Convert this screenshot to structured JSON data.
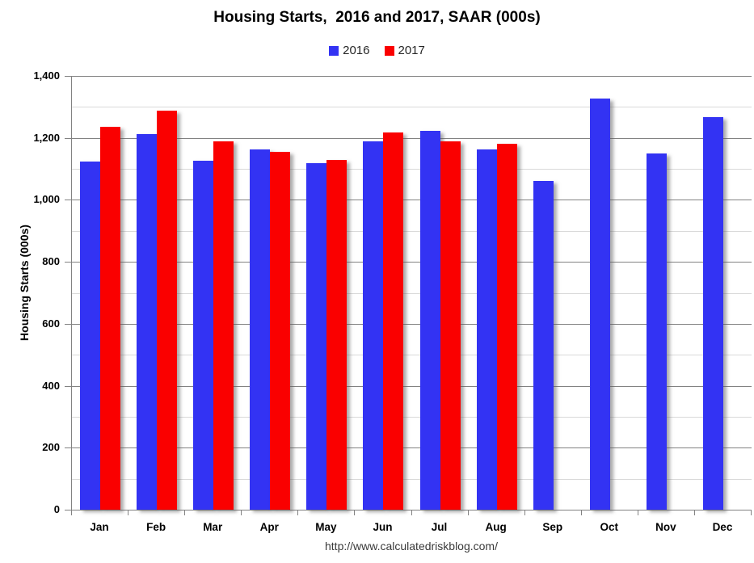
{
  "title": "Housing Starts,  2016 and 2017, SAAR (000s)",
  "footer": {
    "url_text": "http://www.calculatedriskblog.com/"
  },
  "colors": {
    "series_2016": "#3333f3",
    "series_2017": "#fa0000",
    "grid_major": "#828282",
    "grid_minor": "#d9d9d9",
    "axis": "#828282"
  },
  "chart_data": {
    "type": "bar",
    "title": "Housing Starts,  2016 and 2017, SAAR (000s)",
    "xlabel": "",
    "ylabel": "Housing Starts (000s)",
    "categories": [
      "Jan",
      "Feb",
      "Mar",
      "Apr",
      "May",
      "Jun",
      "Jul",
      "Aug",
      "Sep",
      "Oct",
      "Nov",
      "Dec"
    ],
    "series": [
      {
        "name": "2016",
        "color": "#3333f3",
        "values": [
          1123,
          1212,
          1126,
          1164,
          1119,
          1190,
          1223,
          1164,
          1062,
          1328,
          1149,
          1268
        ]
      },
      {
        "name": "2017",
        "color": "#fa0000",
        "values": [
          1236,
          1288,
          1189,
          1154,
          1129,
          1217,
          1190,
          1180,
          null,
          null,
          null,
          null
        ]
      }
    ],
    "ylim": [
      0,
      1400
    ],
    "ytick_interval": 200,
    "minor_gridline_interval": 100,
    "ytick_labels": [
      "0",
      "200",
      "400",
      "600",
      "800",
      "1,000",
      "1,200",
      "1,400"
    ],
    "grid": true,
    "legend_position": "top"
  }
}
